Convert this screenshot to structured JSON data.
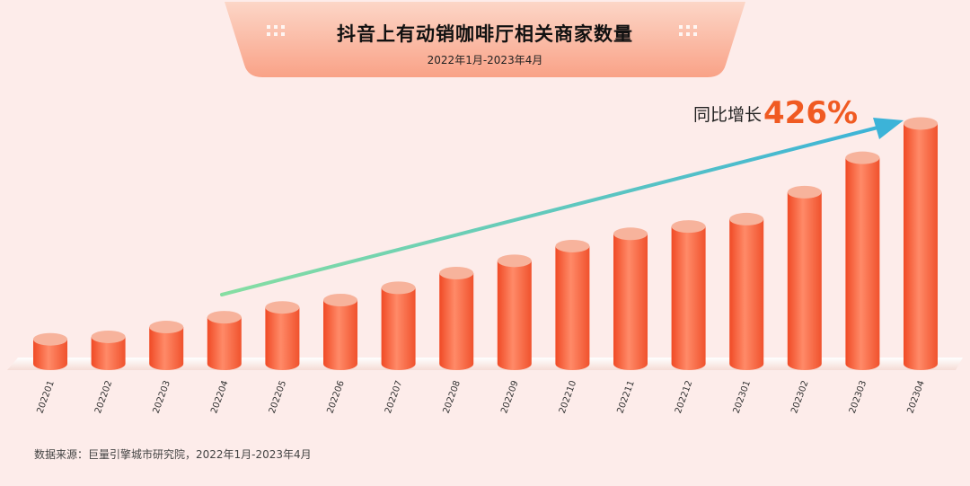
{
  "title": "抖音上有动销咖啡厅相关商家数量",
  "subtitle": "2022年1月-2023年4月",
  "growth": {
    "label": "同比增长",
    "value": "426%"
  },
  "source": "数据来源：巨量引擎城市研究院，2022年1月-2023年4月",
  "colors": {
    "background": "#fdecea",
    "banner_gradient": [
      "#fcd3c3",
      "#f9a085"
    ],
    "bar_gradient": [
      "#ff8c6a",
      "#f0522d"
    ],
    "bar_top": "#f7b39c",
    "arrow_gradient": [
      "#7fdba4",
      "#3fb6d6"
    ]
  },
  "chart_data": {
    "type": "bar",
    "categories": [
      "202201",
      "202202",
      "202203",
      "202204",
      "202205",
      "202206",
      "202207",
      "202208",
      "202209",
      "202210",
      "202211",
      "202212",
      "202301",
      "202302",
      "202303",
      "202304"
    ],
    "values": [
      10,
      11,
      15,
      19,
      23,
      26,
      31,
      37,
      42,
      48,
      53,
      56,
      59,
      70,
      84,
      98
    ],
    "title": "抖音上有动销咖啡厅相关商家数量",
    "xlabel": "",
    "ylabel": "",
    "ylim": [
      0,
      100
    ],
    "grid": false,
    "legend": "none",
    "annotation": "同比增长426%"
  }
}
